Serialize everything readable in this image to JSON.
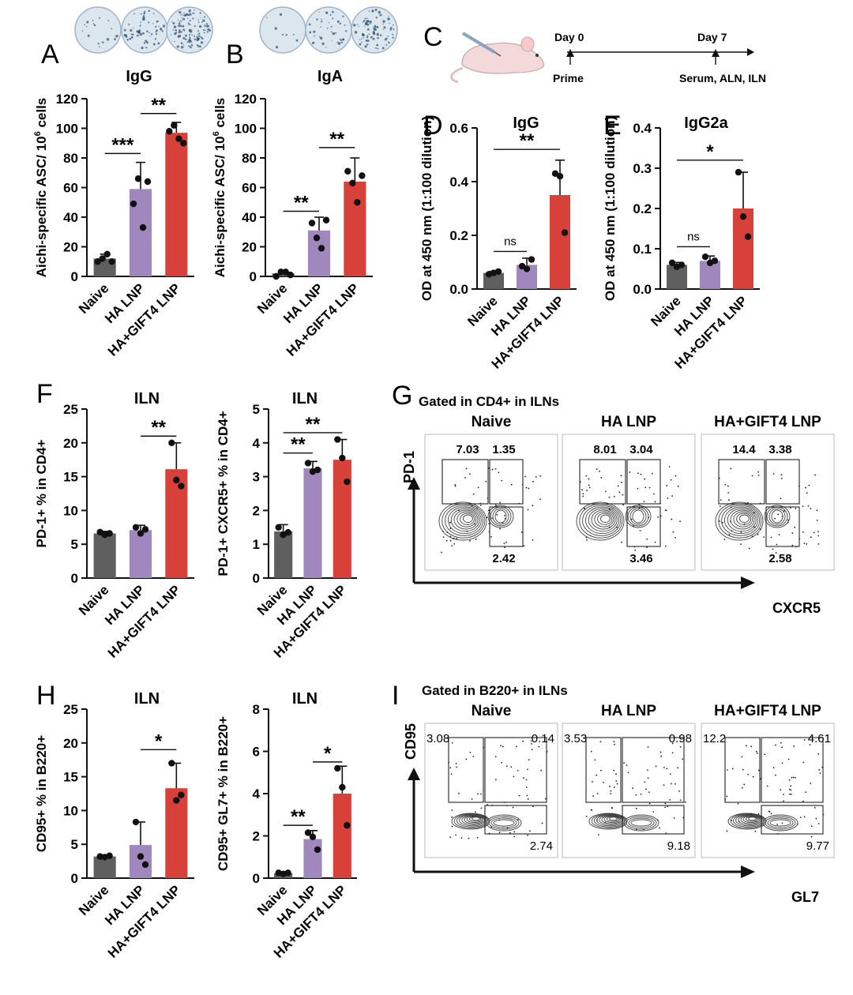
{
  "colors": {
    "naive": "#5f5f5f",
    "ha_lnp": "#a088bf",
    "gift4": "#d8413a",
    "axis": "#111111",
    "contour": "#444444"
  },
  "groups": [
    "Naive",
    "HA LNP",
    "HA+GIFT4 LNP"
  ],
  "panel_c": {
    "letter": "C",
    "day0": "Day 0",
    "day7": "Day 7",
    "prime": "Prime",
    "collect": "Serum, ALN, ILN"
  },
  "chart_data": [
    {
      "id": "A",
      "type": "bar",
      "title": "IgG",
      "ylabel": "Aichi-specific ASC/ 10^6 cells",
      "ylim": [
        0,
        120
      ],
      "yticks": [
        0,
        20,
        40,
        60,
        80,
        100,
        120
      ],
      "categories": [
        "Naive",
        "HA LNP",
        "HA+GIFT4 LNP"
      ],
      "values": [
        12,
        59,
        97
      ],
      "errors": [
        3,
        18,
        7
      ],
      "points": [
        [
          10,
          12,
          15,
          10
        ],
        [
          49,
          66,
          33,
          64
        ],
        [
          98,
          102,
          93,
          90
        ]
      ],
      "sig": [
        {
          "from": 0,
          "to": 1,
          "label": "***",
          "y": 83
        },
        {
          "from": 1,
          "to": 2,
          "label": "**",
          "y": 110
        }
      ],
      "elispot_wells": 3
    },
    {
      "id": "B",
      "type": "bar",
      "title": "IgA",
      "ylabel": "Aichi-specific ASC/ 10^6 cells",
      "ylim": [
        0,
        120
      ],
      "yticks": [
        0,
        20,
        40,
        60,
        80,
        100,
        120
      ],
      "categories": [
        "Naive",
        "HA LNP",
        "HA+GIFT4 LNP"
      ],
      "values": [
        2,
        31,
        64
      ],
      "errors": [
        2,
        9,
        16
      ],
      "points": [
        [
          0,
          3,
          3,
          1
        ],
        [
          36,
          26,
          19,
          38
        ],
        [
          71,
          63,
          50,
          68
        ]
      ],
      "sig": [
        {
          "from": 0,
          "to": 1,
          "label": "**",
          "y": 44
        },
        {
          "from": 1,
          "to": 2,
          "label": "**",
          "y": 87
        }
      ],
      "elispot_wells": 3
    },
    {
      "id": "D",
      "type": "bar",
      "title": "IgG",
      "ylabel": "OD at 450 nm (1:100 dilution)",
      "ylim": [
        0,
        0.6
      ],
      "yticks": [
        0.0,
        0.2,
        0.4,
        0.6
      ],
      "categories": [
        "Naive",
        "HA LNP",
        "HA+GIFT4 LNP"
      ],
      "values": [
        0.06,
        0.09,
        0.35
      ],
      "errors": [
        0.005,
        0.025,
        0.13
      ],
      "points": [
        [
          0.055,
          0.06,
          0.065
        ],
        [
          0.085,
          0.075,
          0.11
        ],
        [
          0.43,
          0.42,
          0.21
        ]
      ],
      "sig": [
        {
          "from": 0,
          "to": 1,
          "label": "ns",
          "y": 0.14
        },
        {
          "from": 0,
          "to": 2,
          "label": "**",
          "y": 0.52
        }
      ]
    },
    {
      "id": "E",
      "type": "bar",
      "title": "IgG2a",
      "ylabel": "OD at 450 nm (1:100 dilution)",
      "ylim": [
        0,
        0.4
      ],
      "yticks": [
        0.0,
        0.1,
        0.2,
        0.3,
        0.4
      ],
      "categories": [
        "Naive",
        "HA LNP",
        "HA+GIFT4 LNP"
      ],
      "values": [
        0.06,
        0.07,
        0.2
      ],
      "errors": [
        0.006,
        0.012,
        0.09
      ],
      "points": [
        [
          0.065,
          0.055,
          0.06
        ],
        [
          0.08,
          0.065,
          0.07
        ],
        [
          0.29,
          0.18,
          0.13
        ]
      ],
      "sig": [
        {
          "from": 0,
          "to": 1,
          "label": "ns",
          "y": 0.105
        },
        {
          "from": 0,
          "to": 2,
          "label": "*",
          "y": 0.32
        }
      ]
    },
    {
      "id": "F1",
      "type": "bar",
      "title": "ILN",
      "ylabel": "PD-1+ % in CD4+",
      "ylim": [
        0,
        25
      ],
      "yticks": [
        0,
        5,
        10,
        15,
        20,
        25
      ],
      "categories": [
        "Naive",
        "HA LNP",
        "HA+GIFT4 LNP"
      ],
      "values": [
        6.6,
        7.1,
        16.1
      ],
      "errors": [
        0.3,
        0.7,
        3.9
      ],
      "points": [
        [
          6.8,
          6.4,
          6.6
        ],
        [
          7.5,
          6.6,
          7.2
        ],
        [
          20.0,
          14.5,
          13.6
        ]
      ],
      "sig": [
        {
          "from": 1,
          "to": 2,
          "label": "**",
          "y": 21
        }
      ]
    },
    {
      "id": "F2",
      "type": "bar",
      "title": "ILN",
      "ylabel": "PD-1+ CXCR5+ % in CD4+",
      "ylim": [
        0,
        5
      ],
      "yticks": [
        0,
        1,
        2,
        3,
        4,
        5
      ],
      "categories": [
        "Naive",
        "HA LNP",
        "HA+GIFT4 LNP"
      ],
      "values": [
        1.38,
        3.25,
        3.5
      ],
      "errors": [
        0.2,
        0.2,
        0.6
      ],
      "points": [
        [
          1.5,
          1.28,
          1.35
        ],
        [
          3.4,
          3.15,
          3.2
        ],
        [
          4.1,
          3.55,
          2.85
        ]
      ],
      "sig": [
        {
          "from": 0,
          "to": 1,
          "label": "**",
          "y": 3.7
        },
        {
          "from": 0,
          "to": 2,
          "label": "**",
          "y": 4.3
        }
      ]
    },
    {
      "id": "H1",
      "type": "bar",
      "title": "ILN",
      "ylabel": "CD95+ % in B220+",
      "ylim": [
        0,
        25
      ],
      "yticks": [
        0,
        5,
        10,
        15,
        20,
        25
      ],
      "categories": [
        "Naive",
        "HA LNP",
        "HA+GIFT4 LNP"
      ],
      "values": [
        3.2,
        4.9,
        13.3
      ],
      "errors": [
        0.2,
        3.4,
        3.7
      ],
      "points": [
        [
          3.2,
          3.1,
          3.3
        ],
        [
          8.3,
          3.2,
          2.0
        ],
        [
          17.0,
          11.5,
          12.3
        ]
      ],
      "sig": [
        {
          "from": 1,
          "to": 2,
          "label": "*",
          "y": 19
        }
      ]
    },
    {
      "id": "H2",
      "type": "bar",
      "title": "ILN",
      "ylabel": "CD95+ GL7+ % in B220+",
      "ylim": [
        0,
        8
      ],
      "yticks": [
        0,
        2,
        4,
        6,
        8
      ],
      "categories": [
        "Naive",
        "HA LNP",
        "HA+GIFT4 LNP"
      ],
      "values": [
        0.23,
        1.85,
        4.0
      ],
      "errors": [
        0.05,
        0.4,
        1.3
      ],
      "points": [
        [
          0.25,
          0.2,
          0.25
        ],
        [
          2.15,
          1.95,
          1.35
        ],
        [
          5.2,
          4.3,
          2.5
        ]
      ],
      "sig": [
        {
          "from": 0,
          "to": 1,
          "label": "**",
          "y": 2.5
        },
        {
          "from": 1,
          "to": 2,
          "label": "*",
          "y": 5.5
        }
      ]
    }
  ],
  "letters": {
    "A": "A",
    "B": "B",
    "D": "D",
    "E": "E",
    "F": "F",
    "G": "G",
    "H": "H",
    "I": "I"
  },
  "flow_g": {
    "title": "Gated in CD4+ in ILNs",
    "y_axis": "PD-1",
    "x_axis": "CXCR5",
    "panels": [
      {
        "label": "Naive",
        "upper_left": "7.03",
        "upper_right": "1.35",
        "lower_right": "2.42"
      },
      {
        "label": "HA LNP",
        "upper_left": "8.01",
        "upper_right": "3.04",
        "lower_right": "3.46"
      },
      {
        "label": "HA+GIFT4 LNP",
        "upper_left": "14.4",
        "upper_right": "3.38",
        "lower_right": "2.58"
      }
    ]
  },
  "flow_i": {
    "title": "Gated in B220+ in ILNs",
    "y_axis": "CD95",
    "x_axis": "GL7",
    "panels": [
      {
        "label": "Naive",
        "upper_left": "3.08",
        "upper_right": "0.14",
        "lower_right": "2.74"
      },
      {
        "label": "HA LNP",
        "upper_left": "3.53",
        "upper_right": "0.98",
        "lower_right": "9.18"
      },
      {
        "label": "HA+GIFT4 LNP",
        "upper_left": "12.2",
        "upper_right": "4.61",
        "lower_right": "9.77"
      }
    ]
  }
}
